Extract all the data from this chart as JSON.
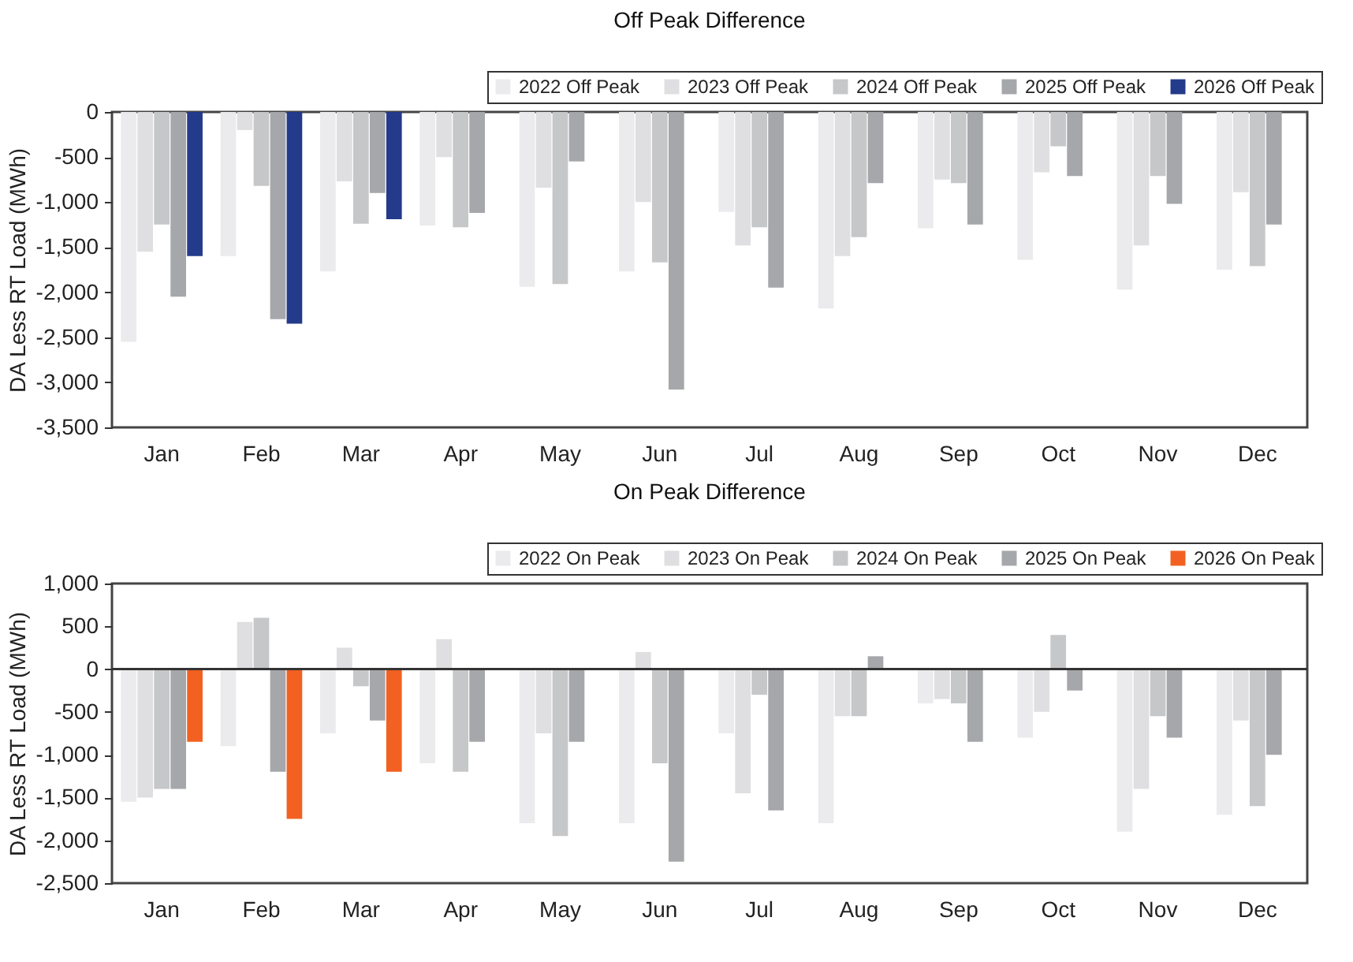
{
  "chart_data": [
    {
      "type": "bar",
      "title": "Off Peak Difference",
      "ylabel": "DA Less RT Load (MWh)",
      "categories": [
        "Jan",
        "Feb",
        "Mar",
        "Apr",
        "May",
        "Jun",
        "Jul",
        "Aug",
        "Sep",
        "Oct",
        "Nov",
        "Dec"
      ],
      "series": [
        {
          "name": "2022 Off Peak",
          "color": "#ebebed",
          "values": [
            -2550,
            -1600,
            -1770,
            -1260,
            -1940,
            -1770,
            -1110,
            -2180,
            -1290,
            -1640,
            -1970,
            -1750
          ]
        },
        {
          "name": "2023 Off Peak",
          "color": "#dfdfe1",
          "values": [
            -1550,
            -200,
            -770,
            -500,
            -840,
            -1000,
            -1480,
            -1600,
            -750,
            -670,
            -1480,
            -890
          ]
        },
        {
          "name": "2024 Off Peak",
          "color": "#c6c7c9",
          "values": [
            -1250,
            -820,
            -1240,
            -1280,
            -1910,
            -1670,
            -1280,
            -1390,
            -790,
            -380,
            -710,
            -1710
          ]
        },
        {
          "name": "2025 Off Peak",
          "color": "#a6a7aa",
          "values": [
            -2050,
            -2300,
            -900,
            -1120,
            -550,
            -3080,
            -1950,
            -790,
            -1250,
            -710,
            -1020,
            -1250
          ]
        },
        {
          "name": "2026 Off Peak",
          "color": "#243a8a",
          "values": [
            -1600,
            -2350,
            -1190,
            null,
            null,
            null,
            null,
            null,
            null,
            null,
            null,
            null
          ]
        }
      ],
      "ylim": [
        -3500,
        0
      ],
      "yticks": [
        {
          "value": -3500,
          "label": "-3,500"
        },
        {
          "value": -3000,
          "label": "-3,000"
        },
        {
          "value": -2500,
          "label": "-2,500"
        },
        {
          "value": -2000,
          "label": "-2,000"
        },
        {
          "value": -1500,
          "label": "-1,500"
        },
        {
          "value": -1000,
          "label": "-1,000"
        },
        -500,
        0
      ],
      "legend": "top right"
    },
    {
      "type": "bar",
      "title": "On Peak Difference",
      "ylabel": "DA Less RT Load (MWh)",
      "categories": [
        "Jan",
        "Feb",
        "Mar",
        "Apr",
        "May",
        "Jun",
        "Jul",
        "Aug",
        "Sep",
        "Oct",
        "Nov",
        "Dec"
      ],
      "series": [
        {
          "name": "2022 On Peak",
          "color": "#ebebed",
          "values": [
            -1550,
            -900,
            -750,
            -1100,
            -1800,
            -1800,
            -750,
            -1800,
            -400,
            -800,
            -1900,
            -1700
          ]
        },
        {
          "name": "2023 On Peak",
          "color": "#dfdfe1",
          "values": [
            -1500,
            550,
            250,
            350,
            -750,
            200,
            -1450,
            -550,
            -350,
            -500,
            -1400,
            -600
          ]
        },
        {
          "name": "2024 On Peak",
          "color": "#c6c7c9",
          "values": [
            -1400,
            600,
            -200,
            -1200,
            -1950,
            -1100,
            -300,
            -550,
            -400,
            400,
            -550,
            -1600
          ]
        },
        {
          "name": "2025 On Peak",
          "color": "#a6a7aa",
          "values": [
            -1400,
            -1200,
            -600,
            -850,
            -850,
            -2250,
            -1650,
            150,
            -850,
            -250,
            -800,
            -1000
          ]
        },
        {
          "name": "2026 On Peak",
          "color": "#f26122",
          "values": [
            -850,
            -1750,
            -1200,
            null,
            null,
            null,
            null,
            null,
            null,
            null,
            null,
            null
          ]
        }
      ],
      "ylim": [
        -2500,
        1000
      ],
      "yticks": [
        {
          "value": -2500,
          "label": "-2,500"
        },
        {
          "value": -2000,
          "label": "-2,000"
        },
        {
          "value": -1500,
          "label": "-1,500"
        },
        {
          "value": -1000,
          "label": "-1,000"
        },
        -500,
        0,
        500,
        {
          "value": 1000,
          "label": "1,000"
        }
      ],
      "legend": "top right",
      "ref_lines": [
        {
          "axis": "y",
          "value": 0,
          "color": "#333333"
        }
      ]
    }
  ]
}
